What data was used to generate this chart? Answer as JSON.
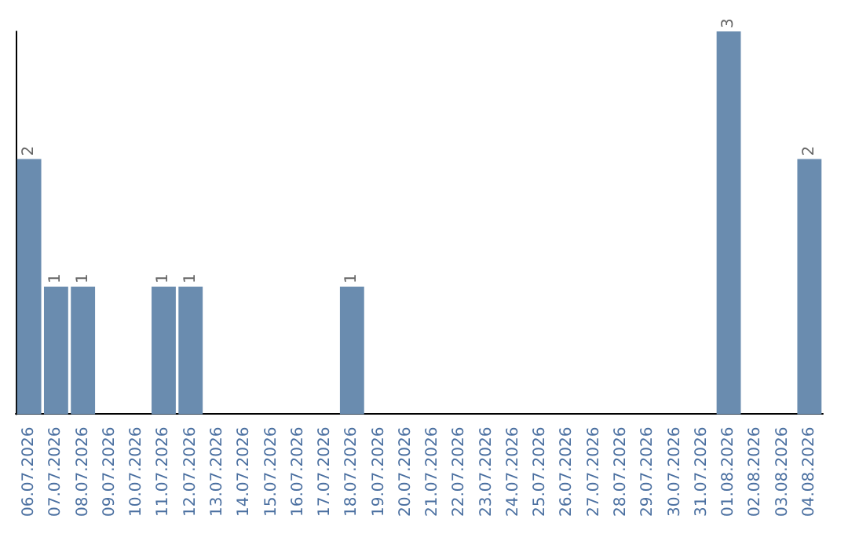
{
  "chart_data": {
    "type": "bar",
    "categories": [
      "06.07.2026",
      "07.07.2026",
      "08.07.2026",
      "09.07.2026",
      "10.07.2026",
      "11.07.2026",
      "12.07.2026",
      "13.07.2026",
      "14.07.2026",
      "15.07.2026",
      "16.07.2026",
      "17.07.2026",
      "18.07.2026",
      "19.07.2026",
      "20.07.2026",
      "21.07.2026",
      "22.07.2026",
      "23.07.2026",
      "24.07.2026",
      "25.07.2026",
      "26.07.2026",
      "27.07.2026",
      "28.07.2026",
      "29.07.2026",
      "30.07.2026",
      "31.07.2026",
      "01.08.2026",
      "02.08.2026",
      "03.08.2026",
      "04.08.2026"
    ],
    "values": [
      2,
      1,
      1,
      0,
      0,
      1,
      1,
      0,
      0,
      0,
      0,
      0,
      1,
      0,
      0,
      0,
      0,
      0,
      0,
      0,
      0,
      0,
      0,
      0,
      0,
      0,
      3,
      0,
      0,
      2
    ],
    "value_labels": [
      "2",
      "1",
      "1",
      null,
      null,
      "1",
      "1",
      null,
      null,
      null,
      null,
      null,
      "1",
      null,
      null,
      null,
      null,
      null,
      null,
      null,
      null,
      null,
      null,
      null,
      null,
      null,
      "3",
      null,
      null,
      "2"
    ],
    "color": "#6a8caf",
    "grid": false,
    "tick_labels": "x"
  }
}
